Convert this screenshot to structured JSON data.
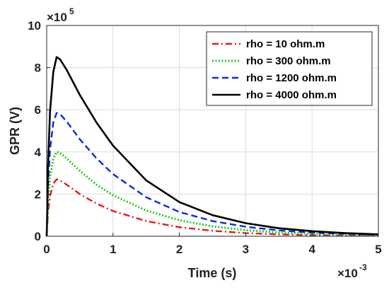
{
  "chart_data": {
    "type": "line",
    "title": "",
    "xlabel": "Time (s)",
    "ylabel": "GPR (V)",
    "xlim": [
      0,
      5
    ],
    "ylim": [
      0,
      10
    ],
    "x_multiplier": {
      "base": "×10",
      "exponent": "-3"
    },
    "y_multiplier": {
      "base": "×10",
      "exponent": "5"
    },
    "x_ticks": [
      "0",
      "1",
      "2",
      "3",
      "4",
      "5"
    ],
    "y_ticks": [
      "0",
      "2",
      "4",
      "6",
      "8",
      "10"
    ],
    "grid": true,
    "legend_position": "top-right",
    "x": [
      0,
      0.02,
      0.05,
      0.1,
      0.15,
      0.2,
      0.3,
      0.5,
      0.75,
      1.0,
      1.5,
      2.0,
      2.5,
      3.0,
      3.5,
      4.0,
      4.5,
      5.0
    ],
    "series": [
      {
        "name": "rho = 10 ohm.m",
        "color": "#e31a1c",
        "dash": "dashdot",
        "values": [
          0,
          1.1,
          1.9,
          2.5,
          2.7,
          2.65,
          2.45,
          2.0,
          1.55,
          1.2,
          0.72,
          0.43,
          0.26,
          0.15,
          0.09,
          0.05,
          0.03,
          0.02
        ]
      },
      {
        "name": "rho = 300 ohm.m",
        "color": "#22cc22",
        "dash": "dotted",
        "values": [
          0,
          1.6,
          2.8,
          3.7,
          4.0,
          3.95,
          3.7,
          3.1,
          2.45,
          1.95,
          1.22,
          0.76,
          0.47,
          0.29,
          0.18,
          0.11,
          0.07,
          0.04
        ]
      },
      {
        "name": "rho = 1200 ohm.m",
        "color": "#0a2bd8",
        "dash": "dashed",
        "values": [
          0,
          2.3,
          4.1,
          5.4,
          5.85,
          5.8,
          5.45,
          4.6,
          3.7,
          2.95,
          1.85,
          1.15,
          0.72,
          0.45,
          0.28,
          0.17,
          0.11,
          0.07
        ]
      },
      {
        "name": "rho = 4000 ohm.m",
        "color": "#000000",
        "dash": "solid",
        "values": [
          0,
          3.3,
          5.9,
          7.8,
          8.5,
          8.4,
          7.9,
          6.7,
          5.4,
          4.3,
          2.65,
          1.62,
          1.0,
          0.62,
          0.38,
          0.24,
          0.15,
          0.09
        ]
      }
    ]
  }
}
